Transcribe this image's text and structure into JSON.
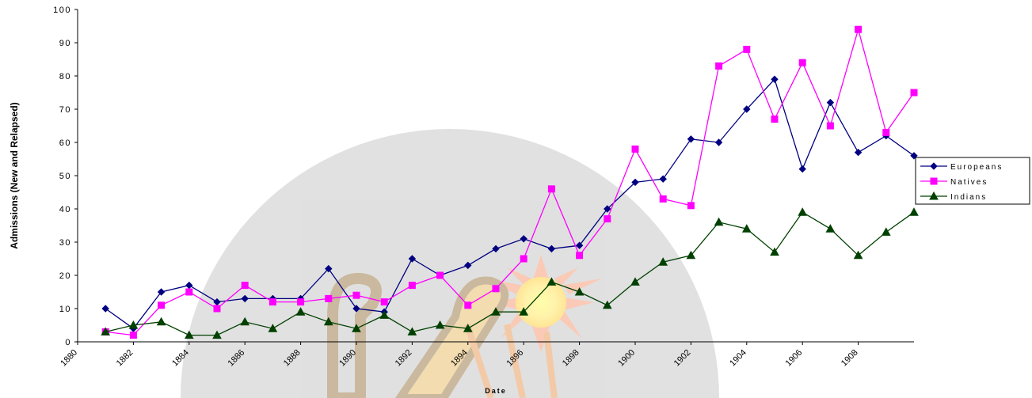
{
  "chart_data": {
    "type": "line",
    "title": "",
    "xlabel": "Date",
    "ylabel": "Admissions (New and Relapsed)",
    "xlim": [
      1880,
      1910
    ],
    "ylim": [
      0,
      100
    ],
    "x_ticks": [
      "1880",
      "1882",
      "1884",
      "1886",
      "1888",
      "1890",
      "1892",
      "1894",
      "1896",
      "1898",
      "1900",
      "1902",
      "1904",
      "1906",
      "1908"
    ],
    "y_ticks": [
      "0",
      "10",
      "20",
      "30",
      "40",
      "50",
      "60",
      "70",
      "80",
      "90",
      "100"
    ],
    "grid": false,
    "legend_position": "right",
    "x": [
      1881,
      1882,
      1883,
      1884,
      1885,
      1886,
      1887,
      1888,
      1889,
      1890,
      1891,
      1892,
      1893,
      1894,
      1895,
      1896,
      1897,
      1898,
      1899,
      1900,
      1901,
      1902,
      1903,
      1904,
      1905,
      1906,
      1907,
      1908,
      1909,
      1910
    ],
    "series": [
      {
        "name": "Europeans",
        "color": "#000080",
        "marker": "diamond",
        "values": [
          10,
          4,
          15,
          17,
          12,
          13,
          13,
          13,
          22,
          10,
          9,
          25,
          20,
          23,
          28,
          31,
          28,
          29,
          40,
          48,
          49,
          61,
          60,
          70,
          79,
          52,
          72,
          57,
          62,
          56
        ]
      },
      {
        "name": "Natives",
        "color": "#ff00ff",
        "marker": "square",
        "values": [
          3,
          2,
          11,
          15,
          10,
          17,
          12,
          12,
          13,
          14,
          12,
          17,
          20,
          11,
          16,
          25,
          46,
          26,
          37,
          58,
          43,
          41,
          83,
          88,
          67,
          84,
          65,
          94,
          63,
          75
        ]
      },
      {
        "name": "Indians",
        "color": "#004000",
        "marker": "triangle",
        "values": [
          3,
          5,
          6,
          2,
          2,
          6,
          4,
          9,
          6,
          4,
          8,
          3,
          5,
          4,
          9,
          9,
          18,
          15,
          11,
          18,
          24,
          26,
          36,
          34,
          27,
          39,
          34,
          26,
          33,
          39
        ]
      }
    ]
  }
}
